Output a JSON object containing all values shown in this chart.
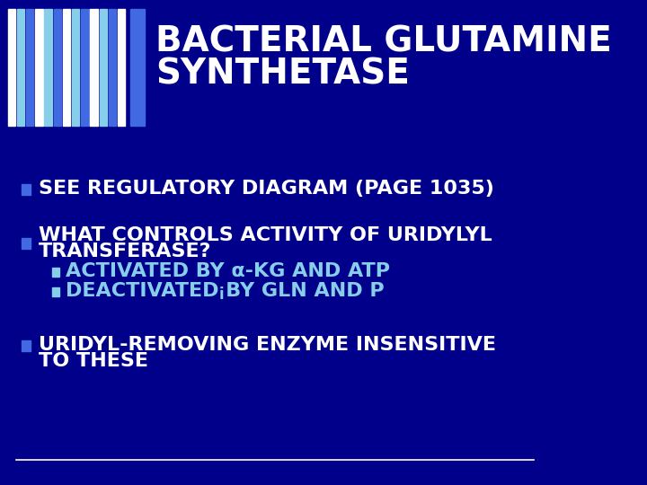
{
  "bg_color": "#00008B",
  "title_line1": "BACTERIAL GLUTAMINE",
  "title_line2": "SYNTHETASE",
  "title_color": "#FFFFFF",
  "title_fontsize": 28,
  "bullet_color": "#FFFFFF",
  "bullet_marker_color": "#4169E1",
  "sub_bullet_color": "#87CEEB",
  "bullet1": "SEE REGULATORY DIAGRAM (PAGE 1035)",
  "bullet2_line1": "WHAT CONTROLS ACTIVITY OF URIDYLYL",
  "bullet2_line2": "TRANSFERASE?",
  "sub1": "ACTIVATED BY α-KG AND ATP",
  "sub2_main": "DEACTIVATED BY GLN AND P",
  "sub2_sub": "i",
  "bullet3_line1": "URIDYL-REMOVING ENZYME INSENSITIVE",
  "bullet3_line2": "TO THESE",
  "bullet_fontsize": 16,
  "sub_fontsize": 16,
  "header_bar_color": "#4169E1",
  "accent_bar_color": "#87CEEB",
  "footer_line_color": "#FFFFFF",
  "stripe_colors": [
    "#FFFFFF",
    "#87CEEB",
    "#4169E1"
  ]
}
